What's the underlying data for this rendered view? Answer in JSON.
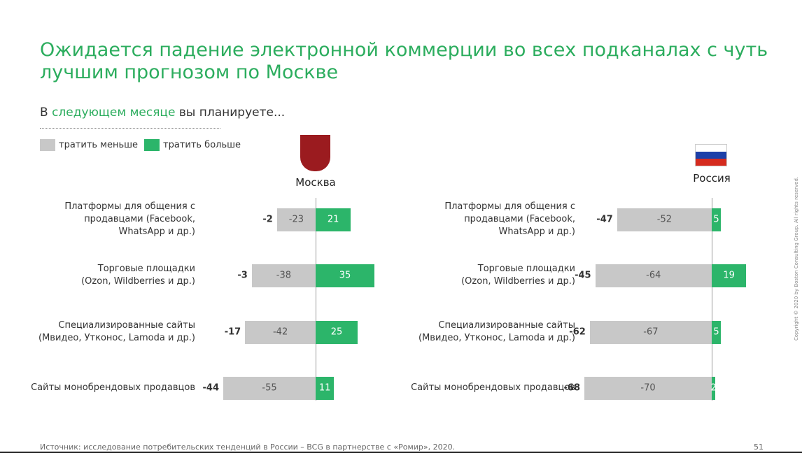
{
  "header": {
    "title": "Ожидается падение электронной коммерции во всех подканалах с чуть\nлучшим прогнозом по Москве",
    "subtitle": [
      "В ",
      "следующем месяце",
      " вы планируете..."
    ]
  },
  "chart_data": [
    {
      "type": "bar",
      "title": "Москва",
      "categories": [
        "Платформы для общения с\nпродавцами (Facebook,\nWhatsApp и др.)",
        "Торговые площадки\n(Ozon, Wildberries и др.)",
        "Специализированные сайты\n(Мвидео, Утконос, Lamoda и др.)",
        "Сайты монобрендовых продавцов"
      ],
      "series": [
        {
          "name": "тратить меньше",
          "color": "#c8c8c8",
          "values": [
            -23,
            -38,
            -42,
            -55
          ]
        },
        {
          "name": "тратить больше",
          "color": "#2cb56a",
          "values": [
            21,
            35,
            25,
            11
          ]
        }
      ],
      "totals": [
        -2,
        -3,
        -17,
        -44
      ]
    },
    {
      "type": "bar",
      "title": "Россия",
      "categories": [
        "Платформы для общения с\nпродавцами (Facebook,\nWhatsApp и др.)",
        "Торговые площадки\n(Ozon, Wildberries и др.)",
        "Специализированные сайты\n(Мвидео, Утконос, Lamoda и др.)",
        "Сайты монобрендовых продавцов"
      ],
      "series": [
        {
          "name": "тратить меньше",
          "color": "#c8c8c8",
          "values": [
            -52,
            -64,
            -67,
            -70
          ]
        },
        {
          "name": "тратить больше",
          "color": "#2cb56a",
          "values": [
            5,
            19,
            5,
            2
          ]
        }
      ],
      "totals": [
        -47,
        -45,
        -62,
        -68
      ]
    }
  ],
  "footer": {
    "source": "Источник: исследование потребительских тенденций в России – BCG в партнерстве с «Ромир», 2020.",
    "page": "51",
    "copyright": "Copyright © 2020 by Boston Consulting Group. All rights reserved."
  }
}
